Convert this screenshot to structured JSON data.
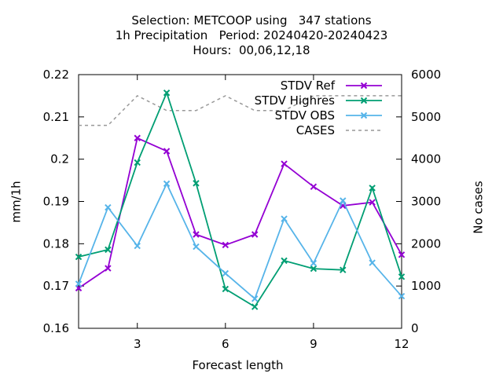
{
  "chart_data": {
    "type": "line",
    "title_lines": [
      "Selection: METCOOP using   347 stations",
      "1h Precipitation   Period: 20240420-20240423",
      "Hours:  00,06,12,18"
    ],
    "xlabel": "Forecast length",
    "ylabel": "mm/1h",
    "y2label": "No cases",
    "xlim": [
      1,
      12
    ],
    "ylim": [
      0.16,
      0.22
    ],
    "y2lim": [
      0,
      6000
    ],
    "x_ticks": [
      "3",
      "6",
      "9",
      "12"
    ],
    "y_ticks": [
      "0.16",
      "0.17",
      "0.18",
      "0.19",
      "0.2",
      "0.21",
      "0.22"
    ],
    "y2_ticks": [
      "0",
      "1000",
      "2000",
      "3000",
      "4000",
      "5000",
      "6000"
    ],
    "legend_position": "top-right",
    "x": [
      1,
      2,
      3,
      4,
      5,
      6,
      7,
      8,
      9,
      10,
      11,
      12
    ],
    "series": [
      {
        "name": "STDV Ref",
        "axis": "y",
        "color": "#9400d3",
        "marker": "x",
        "values": [
          0.1695,
          0.1742,
          0.205,
          0.2019,
          0.1822,
          0.1797,
          0.1822,
          0.1989,
          0.1935,
          0.189,
          0.1898,
          0.1774
        ]
      },
      {
        "name": "STDV Highres",
        "axis": "y",
        "color": "#009e73",
        "marker": "x",
        "values": [
          0.1769,
          0.1786,
          0.1992,
          0.2157,
          0.1943,
          0.1693,
          0.1651,
          0.176,
          0.1741,
          0.1738,
          0.1932,
          0.1722
        ]
      },
      {
        "name": "STDV OBS",
        "axis": "y",
        "color": "#56b4e9",
        "marker": "x",
        "values": [
          0.1705,
          0.1886,
          0.1795,
          0.1942,
          0.1793,
          0.173,
          0.167,
          0.1859,
          0.1754,
          0.1902,
          0.1755,
          0.1676
        ]
      },
      {
        "name": "CASES",
        "axis": "y2",
        "color": "#999999",
        "dashed": true,
        "values": [
          4800,
          4800,
          5500,
          5150,
          5150,
          5500,
          5150,
          5150,
          5500,
          5500,
          5500,
          5500
        ]
      }
    ]
  }
}
